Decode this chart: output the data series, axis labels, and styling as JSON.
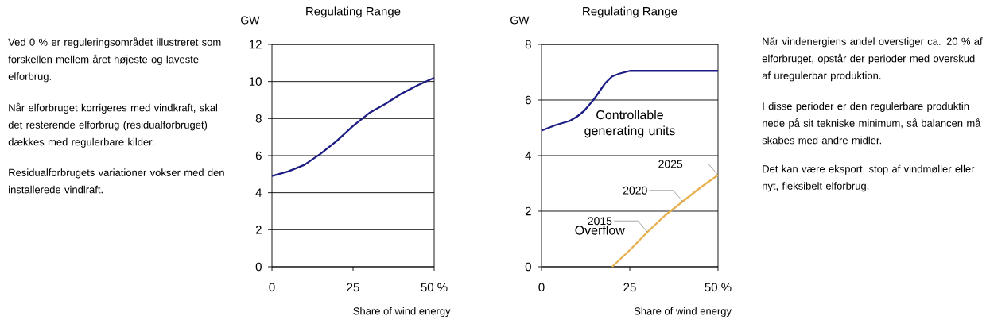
{
  "chart_data": [
    {
      "type": "line",
      "title": "Regulating Range",
      "ylabel": "GW",
      "xlabel": "Share of wind energy",
      "x": [
        0,
        5,
        10,
        15,
        20,
        25,
        30,
        35,
        40,
        45,
        50
      ],
      "series": [
        {
          "color": "#1c1c84",
          "values": [
            4.9,
            5.15,
            5.5,
            6.1,
            6.8,
            7.6,
            8.3,
            8.8,
            9.35,
            9.8,
            10.2
          ]
        }
      ],
      "xlim": [
        0,
        50
      ],
      "ylim": [
        0,
        12
      ],
      "xticks": [
        0,
        25,
        {
          "value": 50,
          "label": "50 %"
        }
      ],
      "yticks": [
        0,
        2,
        4,
        6,
        8,
        10,
        12
      ],
      "grid": "y",
      "annotations": [
        "Ved 0 % er reguleringsområdet illustreret som forskellen mellem året højeste og laveste elforbrug.",
        "Når elforbruget korrigeres med vindkraft, skal det resterende elforbrug (residualforbruget) dækkes med regulerbare kilder.",
        "Residualforbrugets variationer vokser med den installerede vindlraft."
      ]
    },
    {
      "type": "line",
      "title": "Regulating Range",
      "ylabel": "GW",
      "xlabel": "Share of wind energy",
      "series": [
        {
          "name": "Controllable generating units",
          "color": "#1c1c84",
          "x": [
            0,
            4,
            8,
            10,
            12,
            15,
            18,
            20,
            22,
            25,
            30,
            40,
            50
          ],
          "values": [
            4.9,
            5.1,
            5.25,
            5.4,
            5.6,
            6.05,
            6.6,
            6.85,
            6.95,
            7.05,
            7.05,
            7.05,
            7.05
          ]
        },
        {
          "name": "Overflow",
          "color": "#e8b04c",
          "x": [
            20,
            25,
            30,
            35,
            40,
            45,
            50
          ],
          "values": [
            0,
            0.6,
            1.25,
            1.85,
            2.35,
            2.85,
            3.3
          ]
        }
      ],
      "xlim": [
        0,
        50
      ],
      "ylim": [
        0,
        8
      ],
      "xticks": [
        0,
        25,
        {
          "value": 50,
          "label": "50 %"
        }
      ],
      "yticks": [
        0,
        2,
        4,
        6,
        8
      ],
      "grid": "y",
      "annotations": [
        {
          "text": "2015",
          "x": 30,
          "y": 1.25
        },
        {
          "text": "2020",
          "x": 40,
          "y": 2.35
        },
        {
          "text": "2025",
          "x": 50,
          "y": 3.3
        },
        "Når vindenergiens andel overstiger ca. 20 % af elforbruget, opstår der perioder med overskud af uregulerbar produktion.",
        "I disse perioder er den regulerbare produktin nede på sit tekniske minimum, så balancen må skabes med andre midler.",
        "Det kan være eksport, stop af vindmøller eller nyt, fleksibelt elforbrug."
      ]
    }
  ]
}
